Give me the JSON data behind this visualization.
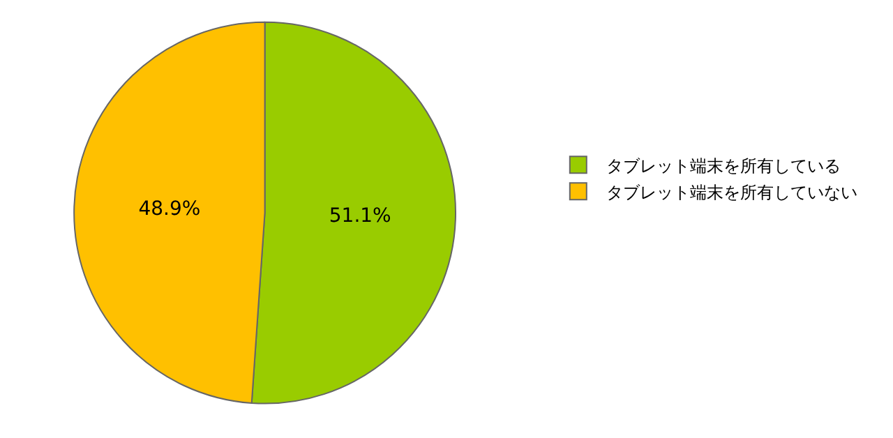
{
  "chart_data": {
    "type": "pie",
    "categories": [
      "タブレット端末を所有している",
      "タブレット端末を所有していない"
    ],
    "values": [
      51.1,
      48.9
    ],
    "colors": [
      "#99cc00",
      "#ffc000"
    ],
    "value_labels": [
      "51.1%",
      "48.9%"
    ],
    "legend": "right"
  }
}
